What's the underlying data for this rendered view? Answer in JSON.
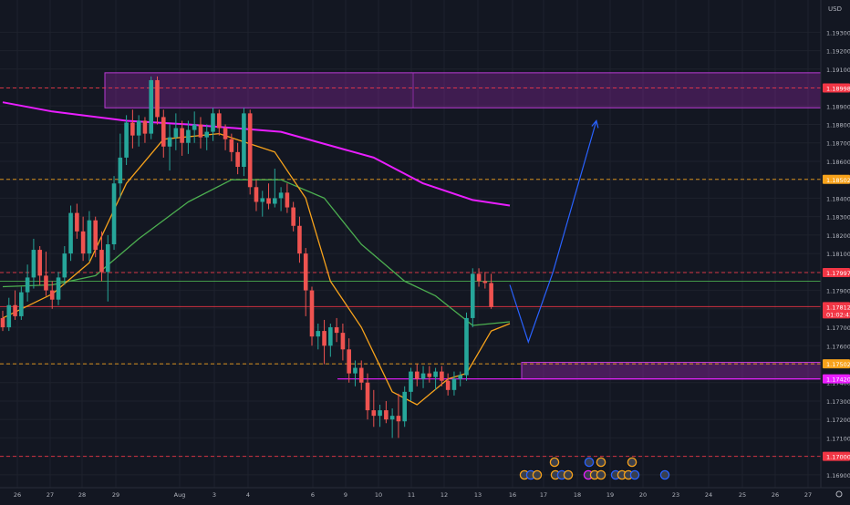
{
  "chart_data": {
    "type": "candlestick",
    "currency": "USD",
    "x_tick_labels": [
      "26",
      "27",
      "28",
      "29",
      "Aug",
      "3",
      "4",
      "6",
      "9",
      "10",
      "11",
      "12",
      "13",
      "16",
      "17",
      "18",
      "19",
      "20",
      "23",
      "24",
      "25",
      "26",
      "27"
    ],
    "y_ticks": [
      1.193,
      1.192,
      1.191,
      1.19,
      1.189,
      1.188,
      1.187,
      1.186,
      1.185,
      1.184,
      1.183,
      1.182,
      1.181,
      1.18,
      1.179,
      1.178,
      1.177,
      1.176,
      1.175,
      1.174,
      1.173,
      1.172,
      1.171,
      1.17,
      1.169
    ],
    "y_tick_labels": [
      "1.19300",
      "1.19200",
      "1.19100",
      "1.19000",
      "1.18900",
      "1.18800",
      "1.18700",
      "1.18600",
      "1.18500",
      "1.18400",
      "1.18300",
      "1.18200",
      "1.18100",
      "1.18000",
      "1.17900",
      "1.17800",
      "1.17700",
      "1.17600",
      "1.17500",
      "1.17400",
      "1.17300",
      "1.17200",
      "1.17100",
      "1.17000",
      "1.16900"
    ],
    "ylim": [
      1.1685,
      1.1945
    ],
    "price_badges": [
      {
        "label": "1.18998",
        "value": 1.18998,
        "color": "#f23645"
      },
      {
        "label": "1.18502",
        "value": 1.18502,
        "color": "#f7a21b"
      },
      {
        "label": "1.17997",
        "value": 1.17997,
        "color": "#f23645"
      },
      {
        "label": "1.17812",
        "value": 1.17812,
        "color": "#f23645",
        "sublabel": "01:02:43"
      },
      {
        "label": "1.17502",
        "value": 1.17502,
        "color": "#f7a21b"
      },
      {
        "label": "1.17420",
        "value": 1.1742,
        "color": "#e91eff"
      },
      {
        "label": "1.17000",
        "value": 1.17,
        "color": "#f23645"
      }
    ],
    "horizontal_levels": [
      {
        "value": 1.18998,
        "style": "dashed",
        "color": "#f23645"
      },
      {
        "value": 1.18502,
        "style": "dashed",
        "color": "#f7a21b"
      },
      {
        "value": 1.17997,
        "style": "dashed",
        "color": "#f23645"
      },
      {
        "value": 1.1795,
        "style": "solid",
        "color": "#4caf50"
      },
      {
        "value": 1.17812,
        "style": "solid",
        "color": "#f23645"
      },
      {
        "value": 1.17502,
        "style": "dashed",
        "color": "#f7a21b"
      },
      {
        "value": 1.17,
        "style": "dashed",
        "color": "#f23645"
      }
    ],
    "zones": [
      {
        "top": 1.1908,
        "bottom": 1.1889,
        "color": "#9c27b0"
      },
      {
        "top": 1.1751,
        "bottom": 1.1742,
        "color": "#9c27b0"
      }
    ],
    "candles": [
      [
        1.1775,
        1.1779,
        1.1768,
        1.177
      ],
      [
        1.177,
        1.1786,
        1.1768,
        1.1782
      ],
      [
        1.1782,
        1.179,
        1.1774,
        1.1776
      ],
      [
        1.1776,
        1.1792,
        1.1774,
        1.1789
      ],
      [
        1.1789,
        1.1804,
        1.1784,
        1.1797
      ],
      [
        1.1797,
        1.1818,
        1.1791,
        1.1812
      ],
      [
        1.1812,
        1.1814,
        1.1793,
        1.1798
      ],
      [
        1.1798,
        1.1811,
        1.1787,
        1.179
      ],
      [
        1.179,
        1.1795,
        1.178,
        1.1785
      ],
      [
        1.1785,
        1.18,
        1.1782,
        1.1797
      ],
      [
        1.1797,
        1.1814,
        1.1793,
        1.181
      ],
      [
        1.181,
        1.1836,
        1.1806,
        1.1832
      ],
      [
        1.1832,
        1.1837,
        1.1818,
        1.1822
      ],
      [
        1.1822,
        1.183,
        1.1806,
        1.181
      ],
      [
        1.181,
        1.1833,
        1.1806,
        1.1828
      ],
      [
        1.1828,
        1.183,
        1.1808,
        1.1812
      ],
      [
        1.1812,
        1.1822,
        1.1795,
        1.18
      ],
      [
        1.18,
        1.182,
        1.1784,
        1.1815
      ],
      [
        1.1815,
        1.1852,
        1.1812,
        1.1848
      ],
      [
        1.1848,
        1.1875,
        1.184,
        1.1862
      ],
      [
        1.1862,
        1.1885,
        1.1858,
        1.1881
      ],
      [
        1.1881,
        1.1888,
        1.1867,
        1.1874
      ],
      [
        1.1874,
        1.1885,
        1.1868,
        1.1882
      ],
      [
        1.1882,
        1.1884,
        1.187,
        1.1875
      ],
      [
        1.1875,
        1.1906,
        1.1872,
        1.1904
      ],
      [
        1.1904,
        1.1906,
        1.188,
        1.1884
      ],
      [
        1.1884,
        1.1888,
        1.1862,
        1.1868
      ],
      [
        1.1868,
        1.188,
        1.1855,
        1.1873
      ],
      [
        1.1873,
        1.1886,
        1.1866,
        1.1878
      ],
      [
        1.1878,
        1.1882,
        1.1863,
        1.187
      ],
      [
        1.187,
        1.1882,
        1.1864,
        1.1877
      ],
      [
        1.1877,
        1.1887,
        1.187,
        1.188
      ],
      [
        1.188,
        1.1884,
        1.1867,
        1.1873
      ],
      [
        1.1873,
        1.188,
        1.1866,
        1.1876
      ],
      [
        1.1876,
        1.1889,
        1.1871,
        1.1886
      ],
      [
        1.1886,
        1.1888,
        1.1874,
        1.1878
      ],
      [
        1.1878,
        1.188,
        1.1866,
        1.1872
      ],
      [
        1.1872,
        1.1875,
        1.186,
        1.1865
      ],
      [
        1.1865,
        1.187,
        1.1853,
        1.1857
      ],
      [
        1.1857,
        1.1889,
        1.1852,
        1.1886
      ],
      [
        1.1886,
        1.1888,
        1.1842,
        1.1846
      ],
      [
        1.1846,
        1.185,
        1.1833,
        1.1838
      ],
      [
        1.1838,
        1.1844,
        1.183,
        1.184
      ],
      [
        1.184,
        1.1848,
        1.1834,
        1.1837
      ],
      [
        1.1837,
        1.1856,
        1.1835,
        1.184
      ],
      [
        1.184,
        1.1846,
        1.1833,
        1.1843
      ],
      [
        1.1843,
        1.1848,
        1.1832,
        1.1835
      ],
      [
        1.1835,
        1.1838,
        1.1822,
        1.1825
      ],
      [
        1.1825,
        1.183,
        1.1805,
        1.181
      ],
      [
        1.181,
        1.1813,
        1.1776,
        1.179
      ],
      [
        1.179,
        1.1792,
        1.176,
        1.1765
      ],
      [
        1.1765,
        1.1772,
        1.1758,
        1.1768
      ],
      [
        1.1768,
        1.1774,
        1.175,
        1.176
      ],
      [
        1.176,
        1.1772,
        1.1754,
        1.177
      ],
      [
        1.177,
        1.1775,
        1.1762,
        1.1767
      ],
      [
        1.1767,
        1.1772,
        1.1752,
        1.1758
      ],
      [
        1.1758,
        1.1764,
        1.174,
        1.1745
      ],
      [
        1.1745,
        1.1752,
        1.1738,
        1.1748
      ],
      [
        1.1748,
        1.1752,
        1.1736,
        1.174
      ],
      [
        1.174,
        1.1745,
        1.172,
        1.1725
      ],
      [
        1.1725,
        1.1736,
        1.1716,
        1.1722
      ],
      [
        1.1722,
        1.1728,
        1.1716,
        1.1725
      ],
      [
        1.1725,
        1.173,
        1.1718,
        1.172
      ],
      [
        1.172,
        1.1726,
        1.171,
        1.1722
      ],
      [
        1.1722,
        1.1734,
        1.171,
        1.1719
      ],
      [
        1.1719,
        1.1738,
        1.1716,
        1.1735
      ],
      [
        1.1735,
        1.1748,
        1.173,
        1.1746
      ],
      [
        1.1746,
        1.175,
        1.1738,
        1.1742
      ],
      [
        1.1742,
        1.1749,
        1.1737,
        1.1745
      ],
      [
        1.1745,
        1.1749,
        1.174,
        1.1743
      ],
      [
        1.1743,
        1.1748,
        1.1736,
        1.1746
      ],
      [
        1.1746,
        1.1749,
        1.1738,
        1.1741
      ],
      [
        1.1741,
        1.1745,
        1.1733,
        1.1736
      ],
      [
        1.1736,
        1.1746,
        1.1733,
        1.1742
      ],
      [
        1.1742,
        1.1746,
        1.1738,
        1.1744
      ],
      [
        1.1744,
        1.1778,
        1.1741,
        1.1775
      ],
      [
        1.1775,
        1.1802,
        1.177,
        1.1799
      ],
      [
        1.1799,
        1.1802,
        1.1792,
        1.1795
      ],
      [
        1.1795,
        1.18,
        1.1791,
        1.1794
      ],
      [
        1.1794,
        1.1799,
        1.178,
        1.1781
      ]
    ],
    "overlays": [
      {
        "name": "",
        "color": "#e91eff",
        "values": [
          [
            0,
            1.1892
          ],
          [
            8,
            1.1887
          ],
          [
            20,
            1.1882
          ],
          [
            30,
            1.188
          ],
          [
            45,
            1.1876
          ],
          [
            60,
            1.1862
          ],
          [
            68,
            1.1848
          ],
          [
            76,
            1.1839
          ],
          [
            82,
            1.1836
          ]
        ]
      },
      {
        "name": "",
        "color": "#4caf50",
        "values": [
          [
            0,
            1.1792
          ],
          [
            8,
            1.1793
          ],
          [
            15,
            1.1798
          ],
          [
            22,
            1.1818
          ],
          [
            30,
            1.1838
          ],
          [
            37,
            1.185
          ],
          [
            45,
            1.185
          ],
          [
            52,
            1.184
          ],
          [
            58,
            1.1815
          ],
          [
            65,
            1.1795
          ],
          [
            70,
            1.1787
          ],
          [
            76,
            1.1771
          ],
          [
            82,
            1.1773
          ]
        ]
      },
      {
        "name": "",
        "color": "#f7a21b",
        "values": [
          [
            0,
            1.1775
          ],
          [
            8,
            1.1788
          ],
          [
            14,
            1.1805
          ],
          [
            20,
            1.1848
          ],
          [
            26,
            1.1872
          ],
          [
            35,
            1.1875
          ],
          [
            44,
            1.1865
          ],
          [
            49,
            1.184
          ],
          [
            53,
            1.1795
          ],
          [
            58,
            1.177
          ],
          [
            63,
            1.1735
          ],
          [
            67,
            1.1728
          ],
          [
            72,
            1.1742
          ],
          [
            75,
            1.1745
          ],
          [
            79,
            1.1768
          ],
          [
            82,
            1.1772
          ]
        ]
      }
    ],
    "projection": [
      [
        82,
        1.1793
      ],
      [
        85,
        1.1762
      ],
      [
        89,
        1.18
      ],
      [
        96,
        1.1882
      ]
    ]
  }
}
